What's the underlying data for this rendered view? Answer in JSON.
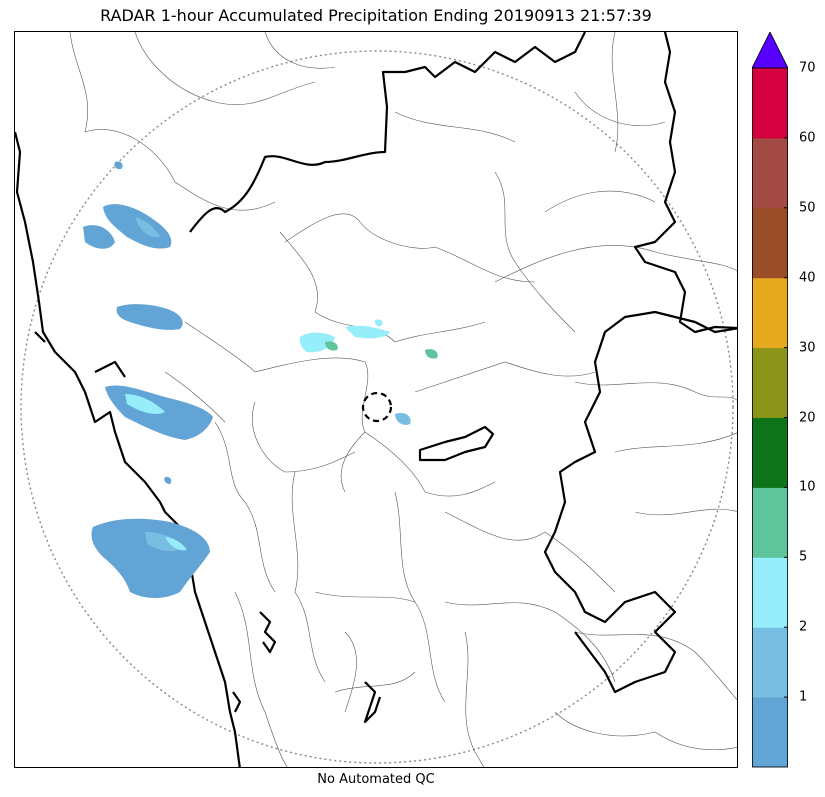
{
  "title": "RADAR 1-hour Accumulated Precipitation Ending 20190913 21:57:39",
  "footer": "No Automated QC",
  "colorbar": {
    "bins": [
      {
        "from": 0,
        "to": 1,
        "color": "#62a4d6"
      },
      {
        "from": 1,
        "to": 2,
        "color": "#78bde2"
      },
      {
        "from": 2,
        "to": 5,
        "color": "#95eef9"
      },
      {
        "from": 5,
        "to": 10,
        "color": "#5ec49b"
      },
      {
        "from": 10,
        "to": 20,
        "color": "#0d7419"
      },
      {
        "from": 20,
        "to": 30,
        "color": "#8a9418"
      },
      {
        "from": 30,
        "to": 40,
        "color": "#e6a81f"
      },
      {
        "from": 40,
        "to": 50,
        "color": "#9a4e27"
      },
      {
        "from": 50,
        "to": 60,
        "color": "#a44a44"
      },
      {
        "from": 60,
        "to": 70,
        "color": "#d4003f"
      }
    ],
    "over_color": "#5800ff",
    "tick_labels": [
      "1",
      "2",
      "5",
      "10",
      "20",
      "30",
      "40",
      "50",
      "60",
      "70"
    ]
  }
}
